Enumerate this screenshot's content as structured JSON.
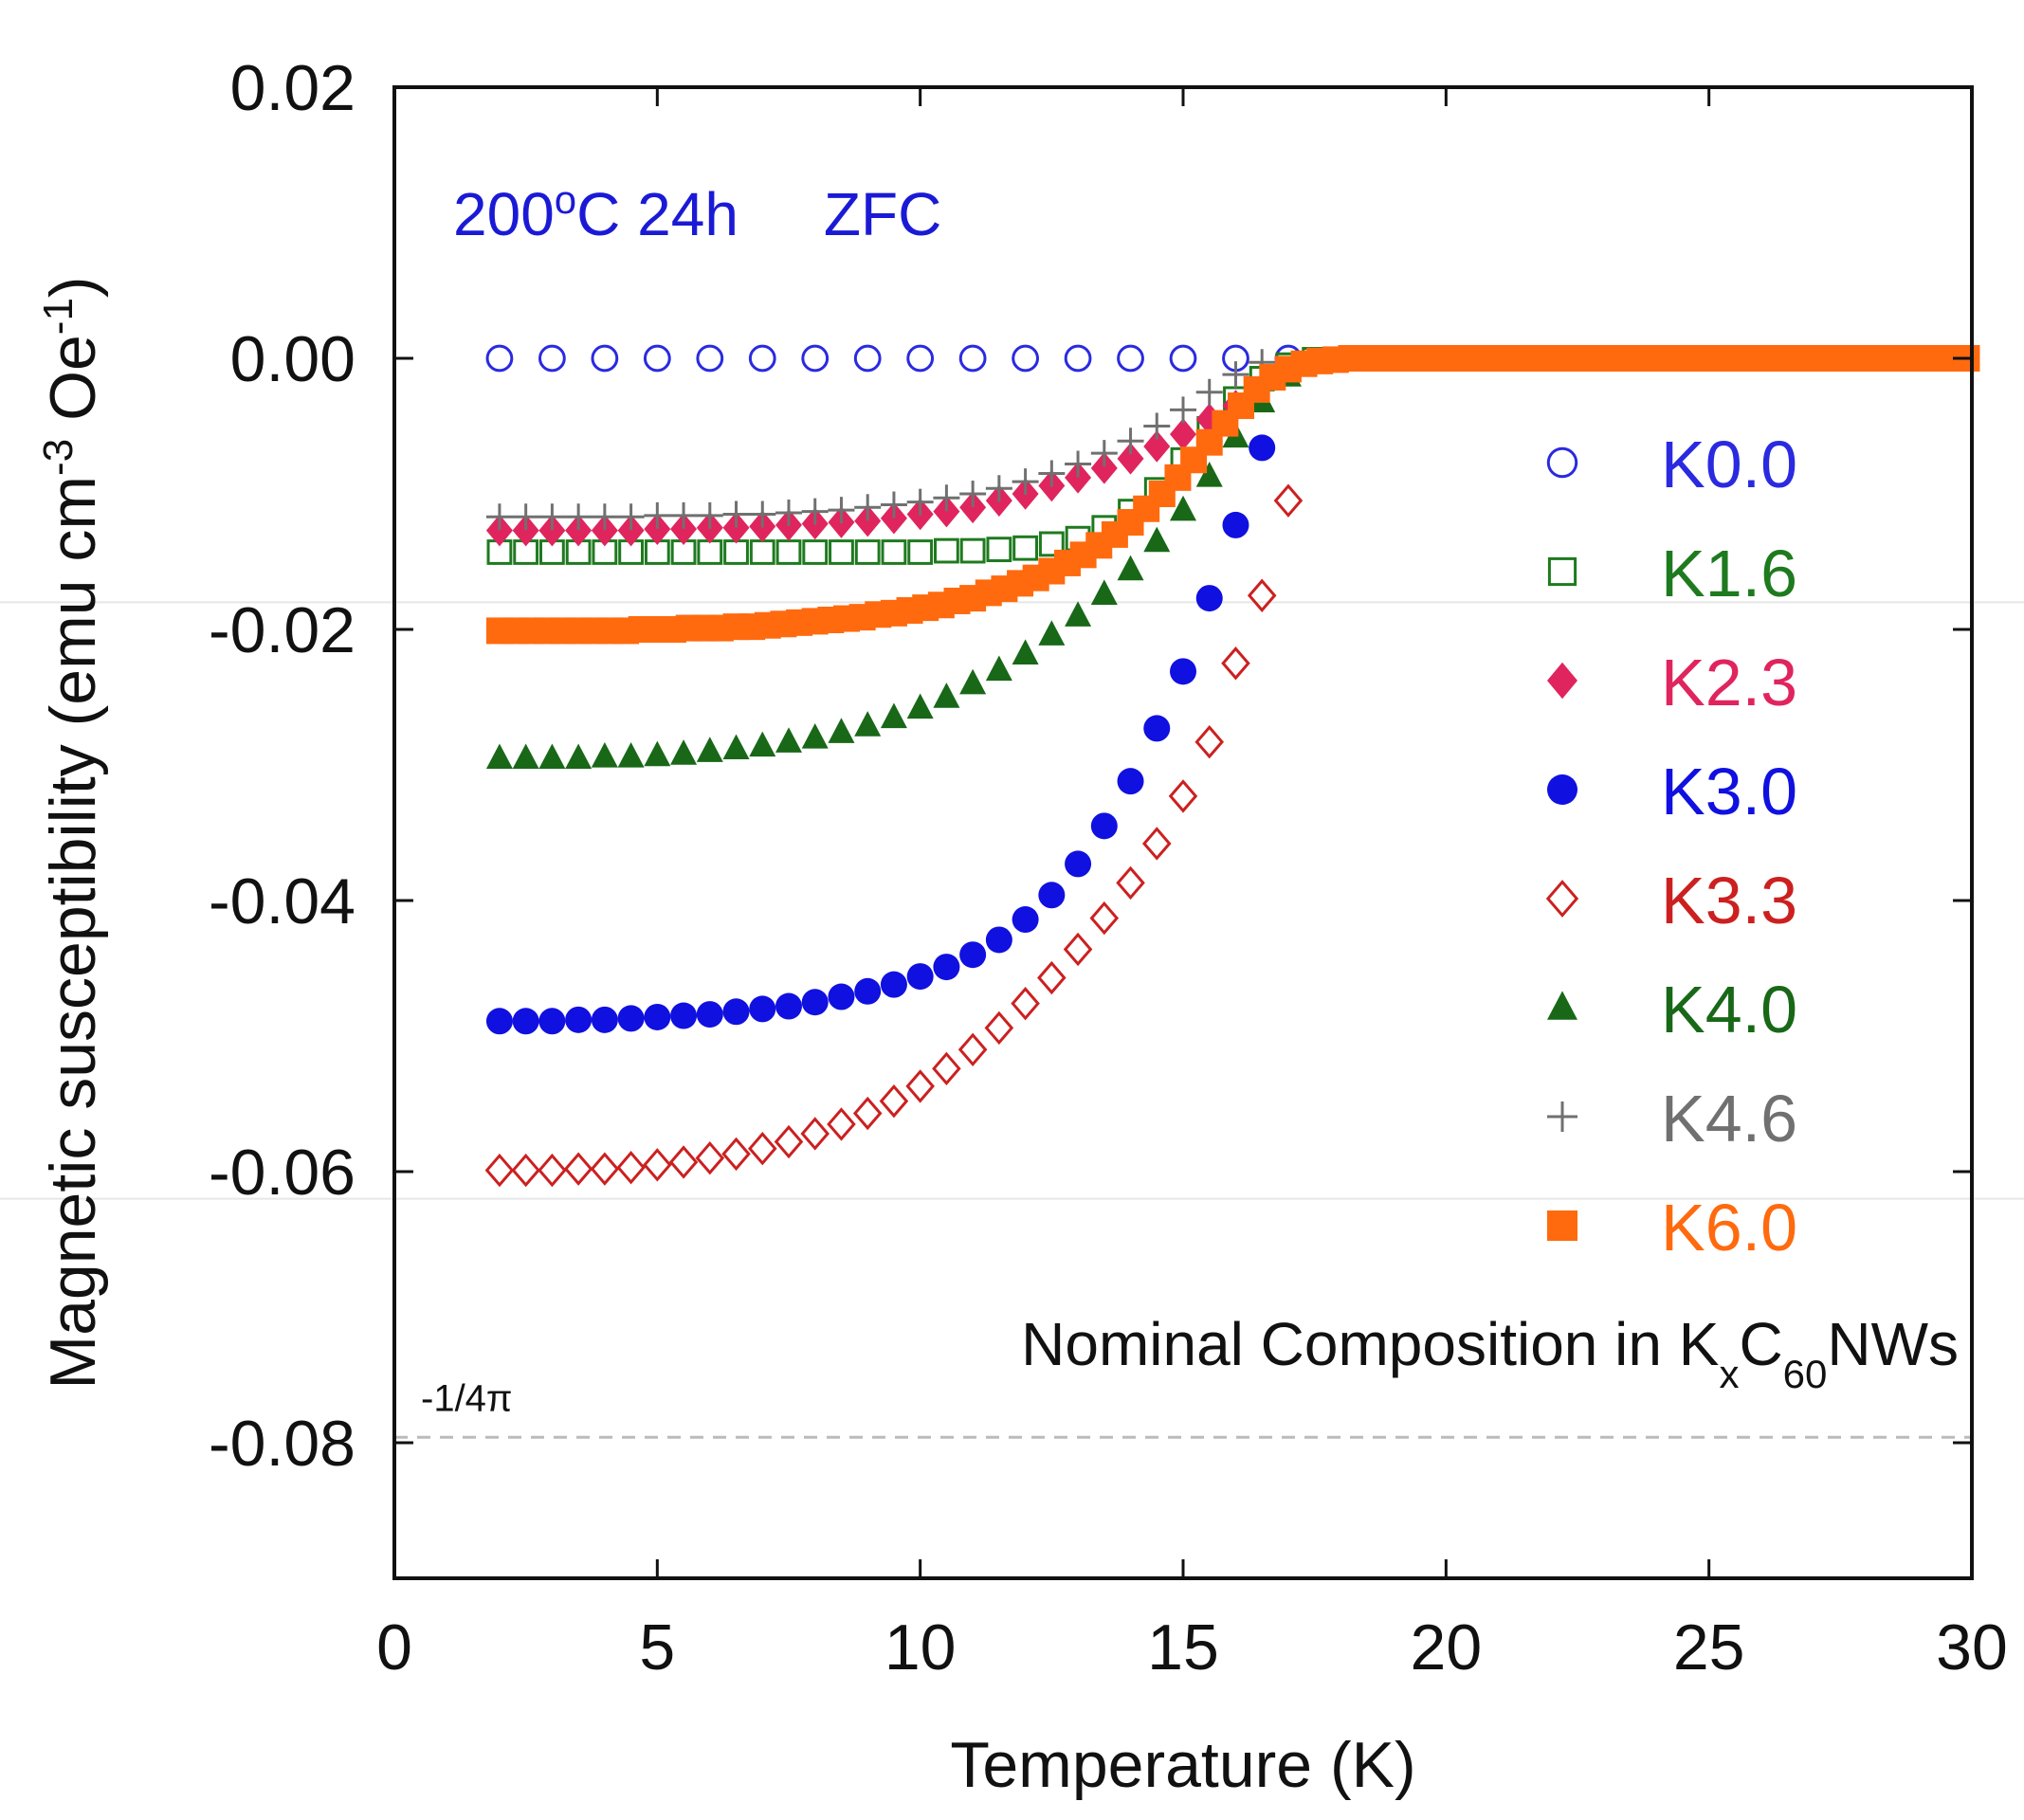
{
  "chart_data": {
    "type": "scatter",
    "xlabel": "Temperature (K)",
    "ylabel": {
      "main": "Magnetic susceptibility (emu cm",
      "sup1": "-3",
      "mid": " Oe",
      "sup2": "-1",
      "end": ")"
    },
    "xlim": [
      0,
      30
    ],
    "ylim": [
      -0.09,
      0.02
    ],
    "xticks": [
      0,
      5,
      10,
      15,
      20,
      25,
      30
    ],
    "xtick_labels": [
      "0",
      "5",
      "10",
      "15",
      "20",
      "25",
      "30"
    ],
    "yticks": [
      0.02,
      0.0,
      -0.02,
      -0.04,
      -0.06,
      -0.08
    ],
    "ytick_labels": [
      "0.02",
      "0.00",
      "-0.02",
      "-0.04",
      "-0.06",
      "-0.08"
    ],
    "annotation": {
      "temp": "200",
      "deg": "o",
      "rest": "C 24h",
      "mode": "ZFC"
    },
    "composition_note": {
      "prefix": "Nominal Composition in K",
      "sub1": "x",
      "mid": "C",
      "sub2": "60",
      "suffix": "NWs"
    },
    "reference_line": {
      "y": -0.0796,
      "label": "-1/4π"
    },
    "legend_position": "right",
    "series": [
      {
        "name": "K0.0",
        "marker": "circle-open",
        "color": "#2a2ae0",
        "x": [
          2,
          3,
          4,
          5,
          6,
          7,
          8,
          9,
          10,
          11,
          12,
          13,
          14,
          15,
          16,
          17
        ],
        "y": [
          0,
          0,
          0,
          0,
          0,
          0,
          0,
          0,
          0,
          0,
          0,
          0,
          0,
          0,
          0,
          0
        ]
      },
      {
        "name": "K1.6",
        "marker": "square-open",
        "color": "#1e7a1e",
        "x": [
          2,
          2.5,
          3,
          3.5,
          4,
          4.5,
          5,
          5.5,
          6,
          6.5,
          7,
          7.5,
          8,
          8.5,
          9,
          9.5,
          10,
          10.5,
          11,
          11.5,
          12,
          12.5,
          13,
          13.5,
          14,
          14.5,
          15,
          15.5,
          16,
          16.5,
          17,
          17.5
        ],
        "y": [
          -0.0143,
          -0.0143,
          -0.0143,
          -0.0143,
          -0.0143,
          -0.0143,
          -0.0143,
          -0.0143,
          -0.0143,
          -0.0143,
          -0.0143,
          -0.0143,
          -0.0143,
          -0.0143,
          -0.0143,
          -0.0143,
          -0.0143,
          -0.0142,
          -0.0142,
          -0.0141,
          -0.014,
          -0.0137,
          -0.0133,
          -0.0125,
          -0.0113,
          -0.0097,
          -0.0075,
          -0.0052,
          -0.003,
          -0.0015,
          -0.0005,
          -0.0001
        ]
      },
      {
        "name": "K2.3",
        "marker": "diamond-filled",
        "color": "#e0245e",
        "x": [
          2,
          2.5,
          3,
          3.5,
          4,
          4.5,
          5,
          5.5,
          6,
          6.5,
          7,
          7.5,
          8,
          8.5,
          9,
          9.5,
          10,
          10.5,
          11,
          11.5,
          12,
          12.5,
          13,
          13.5,
          14,
          14.5,
          15,
          15.5,
          16
        ],
        "y": [
          -0.0127,
          -0.0127,
          -0.0127,
          -0.0127,
          -0.0127,
          -0.0127,
          -0.0126,
          -0.0126,
          -0.0125,
          -0.0125,
          -0.0124,
          -0.0123,
          -0.0122,
          -0.0121,
          -0.012,
          -0.0118,
          -0.0115,
          -0.0113,
          -0.011,
          -0.0105,
          -0.01,
          -0.0094,
          -0.0088,
          -0.0081,
          -0.0074,
          -0.0065,
          -0.0056,
          -0.0045,
          -0.0035
        ]
      },
      {
        "name": "K3.0",
        "marker": "circle-filled",
        "color": "#1010e0",
        "x": [
          2,
          2.5,
          3,
          3.5,
          4,
          4.5,
          5,
          5.5,
          6,
          6.5,
          7,
          7.5,
          8,
          8.5,
          9,
          9.5,
          10,
          10.5,
          11,
          11.5,
          12,
          12.5,
          13,
          13.5,
          14,
          14.5,
          15,
          15.5,
          16,
          16.5
        ],
        "y": [
          -0.0489,
          -0.0489,
          -0.0489,
          -0.0488,
          -0.0488,
          -0.0487,
          -0.0486,
          -0.0485,
          -0.0484,
          -0.0482,
          -0.048,
          -0.0478,
          -0.0475,
          -0.0471,
          -0.0467,
          -0.0462,
          -0.0456,
          -0.0449,
          -0.044,
          -0.0429,
          -0.0414,
          -0.0396,
          -0.0373,
          -0.0345,
          -0.0312,
          -0.0273,
          -0.0231,
          -0.0177,
          -0.0123,
          -0.0066
        ]
      },
      {
        "name": "K3.3",
        "marker": "diamond-open",
        "color": "#cc2020",
        "x": [
          2,
          2.5,
          3,
          3.5,
          4,
          4.5,
          5,
          5.5,
          6,
          6.5,
          7,
          7.5,
          8,
          8.5,
          9,
          9.5,
          10,
          10.5,
          11,
          11.5,
          12,
          12.5,
          13,
          13.5,
          14,
          14.5,
          15,
          15.5,
          16,
          16.5,
          17
        ],
        "y": [
          -0.0599,
          -0.0599,
          -0.0599,
          -0.0598,
          -0.0598,
          -0.0597,
          -0.0595,
          -0.0593,
          -0.059,
          -0.0587,
          -0.0583,
          -0.0578,
          -0.0572,
          -0.0565,
          -0.0557,
          -0.0548,
          -0.0537,
          -0.0524,
          -0.051,
          -0.0494,
          -0.0476,
          -0.0457,
          -0.0436,
          -0.0413,
          -0.0387,
          -0.0358,
          -0.0323,
          -0.0283,
          -0.0225,
          -0.0175,
          -0.0105
        ]
      },
      {
        "name": "K4.0",
        "marker": "triangle-filled",
        "color": "#186818",
        "x": [
          2,
          2.5,
          3,
          3.5,
          4,
          4.5,
          5,
          5.5,
          6,
          6.5,
          7,
          7.5,
          8,
          8.5,
          9,
          9.5,
          10,
          10.5,
          11,
          11.5,
          12,
          12.5,
          13,
          13.5,
          14,
          14.5,
          15,
          15.5,
          16,
          16.5,
          17,
          17.5
        ],
        "y": [
          -0.0295,
          -0.0295,
          -0.0295,
          -0.0295,
          -0.0294,
          -0.0294,
          -0.0293,
          -0.0292,
          -0.029,
          -0.0288,
          -0.0286,
          -0.0283,
          -0.028,
          -0.0276,
          -0.0271,
          -0.0265,
          -0.0258,
          -0.025,
          -0.024,
          -0.023,
          -0.0218,
          -0.0204,
          -0.019,
          -0.0174,
          -0.0156,
          -0.0135,
          -0.0112,
          -0.0087,
          -0.0058,
          -0.0032,
          -0.0013,
          -0.0003
        ]
      },
      {
        "name": "K4.6",
        "marker": "plus",
        "color": "#707070",
        "x": [
          2,
          2.5,
          3,
          3.5,
          4,
          4.5,
          5,
          5.5,
          6,
          6.5,
          7,
          7.5,
          8,
          8.5,
          9,
          9.5,
          10,
          10.5,
          11,
          11.5,
          12,
          12.5,
          13,
          13.5,
          14,
          14.5,
          15,
          15.5,
          16,
          16.5
        ],
        "y": [
          -0.0117,
          -0.0117,
          -0.0117,
          -0.0117,
          -0.0117,
          -0.0117,
          -0.0116,
          -0.0116,
          -0.0116,
          -0.0115,
          -0.0115,
          -0.0114,
          -0.0113,
          -0.0112,
          -0.011,
          -0.0108,
          -0.0106,
          -0.0103,
          -0.01,
          -0.0096,
          -0.0091,
          -0.0085,
          -0.0078,
          -0.007,
          -0.0061,
          -0.005,
          -0.0038,
          -0.0025,
          -0.0012,
          -0.0003
        ]
      },
      {
        "name": "K6.0",
        "marker": "square-filled",
        "color": "#ff6a0e",
        "x": [
          2,
          2.3,
          2.6,
          2.9,
          3.2,
          3.5,
          3.8,
          4.1,
          4.4,
          4.7,
          5,
          5.3,
          5.6,
          5.9,
          6.2,
          6.5,
          6.8,
          7.1,
          7.4,
          7.7,
          8,
          8.3,
          8.6,
          8.9,
          9.2,
          9.5,
          9.8,
          10.1,
          10.4,
          10.7,
          11,
          11.3,
          11.6,
          11.9,
          12.2,
          12.5,
          12.8,
          13.1,
          13.4,
          13.7,
          14,
          14.3,
          14.6,
          14.9,
          15.2,
          15.5,
          15.8,
          16.1,
          16.4,
          16.7,
          17,
          17.3,
          17.6,
          17.9,
          18.2,
          18.5,
          18.8,
          19.1,
          19.4,
          19.7,
          20,
          20.3,
          20.6,
          20.9,
          21.2,
          21.5,
          21.8,
          22.1,
          22.4,
          22.7,
          23,
          23.3,
          23.6,
          23.9,
          24.2,
          24.5,
          24.8,
          25.1,
          25.4,
          25.7,
          26,
          26.3,
          26.6,
          26.9,
          27.2,
          27.5,
          27.8,
          28.1,
          28.4,
          28.7,
          29,
          29.3,
          29.6,
          29.9
        ],
        "y": [
          -0.0201,
          -0.0201,
          -0.0201,
          -0.0201,
          -0.0201,
          -0.0201,
          -0.0201,
          -0.0201,
          -0.0201,
          -0.02,
          -0.02,
          -0.02,
          -0.0199,
          -0.0199,
          -0.0199,
          -0.0198,
          -0.0198,
          -0.0197,
          -0.0196,
          -0.0195,
          -0.0194,
          -0.0193,
          -0.0192,
          -0.0191,
          -0.0189,
          -0.0188,
          -0.0186,
          -0.0184,
          -0.0182,
          -0.0179,
          -0.0177,
          -0.0173,
          -0.017,
          -0.0166,
          -0.0162,
          -0.0157,
          -0.0151,
          -0.0145,
          -0.0138,
          -0.013,
          -0.0121,
          -0.0111,
          -0.01,
          -0.0088,
          -0.0075,
          -0.0062,
          -0.0048,
          -0.0035,
          -0.0023,
          -0.0014,
          -0.0008,
          -0.0004,
          -0.0002,
          -0.0001,
          0,
          0,
          0,
          0,
          0,
          0,
          0,
          0,
          0,
          0,
          0,
          0,
          0,
          0,
          0,
          0,
          0,
          0,
          0,
          0,
          0,
          0,
          0,
          0,
          0,
          0,
          0,
          0,
          0,
          0,
          0,
          0,
          0,
          0,
          0,
          0,
          0,
          0,
          0,
          0
        ]
      }
    ]
  }
}
